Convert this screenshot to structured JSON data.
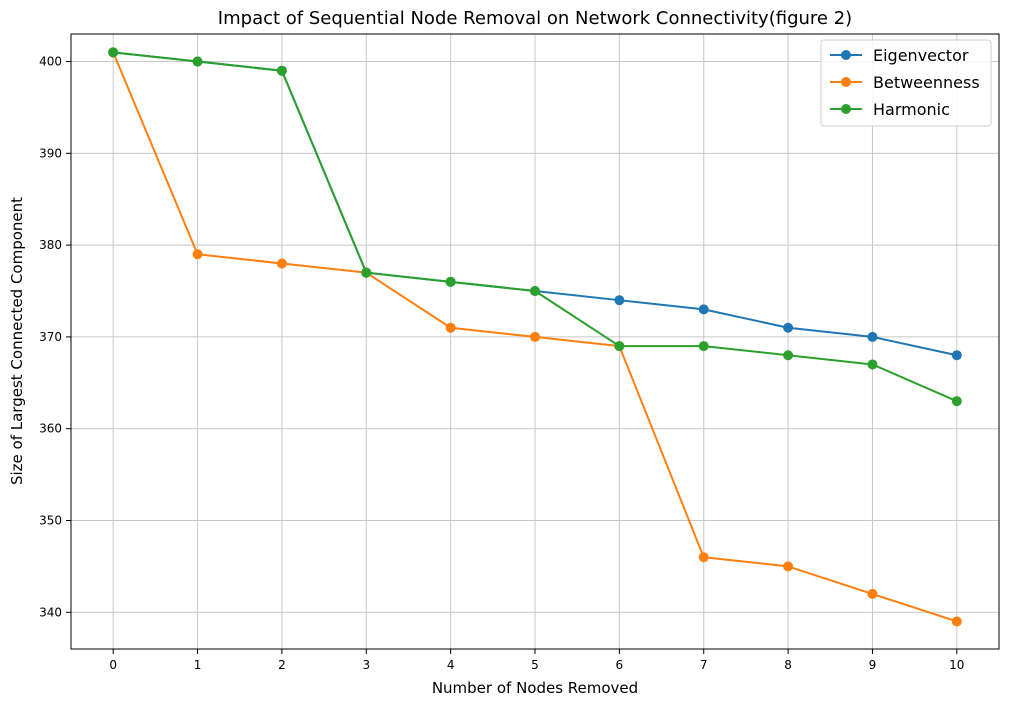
{
  "chart_data": {
    "type": "line",
    "title": "Impact of Sequential Node Removal on Network Connectivity(figure 2)",
    "xlabel": "Number of Nodes Removed",
    "ylabel": "Size of Largest Connected Component",
    "x": [
      0,
      1,
      2,
      3,
      4,
      5,
      6,
      7,
      8,
      9,
      10
    ],
    "xlim": [
      -0.5,
      10.5
    ],
    "ylim": [
      336,
      403
    ],
    "xticks": [
      0,
      1,
      2,
      3,
      4,
      5,
      6,
      7,
      8,
      9,
      10
    ],
    "yticks": [
      340,
      350,
      360,
      370,
      380,
      390,
      400
    ],
    "grid": true,
    "legend_position": "top-right",
    "series": [
      {
        "name": "Eigenvector",
        "color": "#1f77b4",
        "values": [
          401,
          400,
          399,
          377,
          376,
          375,
          374,
          373,
          371,
          370,
          368
        ]
      },
      {
        "name": "Betweenness",
        "color": "#ff7f0e",
        "values": [
          401,
          379,
          378,
          377,
          371,
          370,
          369,
          346,
          345,
          342,
          339
        ]
      },
      {
        "name": "Harmonic",
        "color": "#2ca02c",
        "values": [
          401,
          400,
          399,
          377,
          376,
          375,
          369,
          369,
          368,
          367,
          363
        ]
      }
    ]
  }
}
